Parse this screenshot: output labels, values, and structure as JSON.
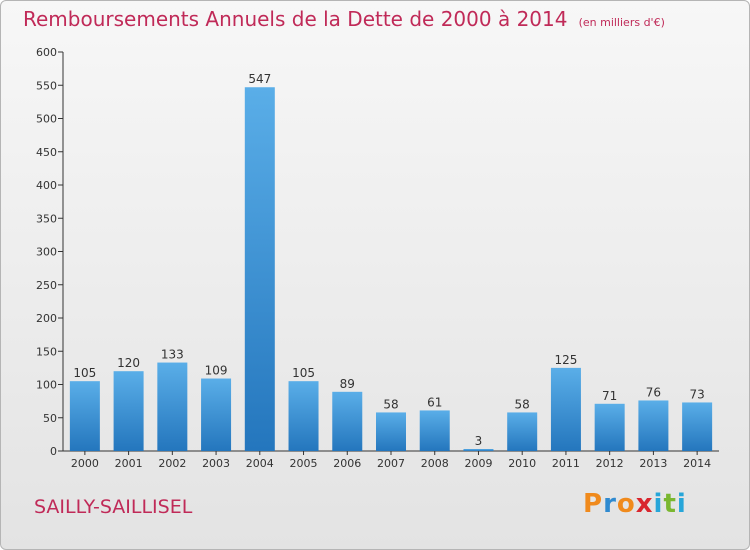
{
  "chart_data": {
    "type": "bar",
    "title": "Remboursements Annuels de la Dette de 2000 à 2014",
    "unit_note": "(en milliers d'€)",
    "categories": [
      "2000",
      "2001",
      "2002",
      "2003",
      "2004",
      "2005",
      "2006",
      "2007",
      "2008",
      "2009",
      "2010",
      "2011",
      "2012",
      "2013",
      "2014"
    ],
    "values": [
      105,
      120,
      133,
      109,
      547,
      105,
      89,
      58,
      61,
      3,
      58,
      125,
      71,
      76,
      73
    ],
    "data_labels": [
      "105",
      "120",
      "133",
      "109",
      "547",
      "105",
      "89",
      "58",
      "61",
      "3",
      "58",
      "125",
      "71",
      "76",
      "73"
    ],
    "ylim": [
      0,
      600
    ],
    "yticks": [
      0,
      50,
      100,
      150,
      200,
      250,
      300,
      350,
      400,
      450,
      500,
      550,
      600
    ],
    "ytick_labels": [
      "0",
      "50",
      "100",
      "150",
      "200",
      "250",
      "300",
      "350",
      "400",
      "450",
      "500",
      "550",
      "600"
    ],
    "xlabel": "",
    "ylabel": "",
    "grid": false,
    "bar_color": "#2e8fd6"
  },
  "footer": {
    "commune": "SAILLY-SAILLISEL",
    "logo_letters": [
      {
        "ch": "P",
        "color": "#f08a1c"
      },
      {
        "ch": "r",
        "color": "#2f8ad0"
      },
      {
        "ch": "o",
        "color": "#f08a1c"
      },
      {
        "ch": "x",
        "color": "#d9262e"
      },
      {
        "ch": "i",
        "color": "#27a6d9"
      },
      {
        "ch": "t",
        "color": "#7ab730"
      },
      {
        "ch": "i",
        "color": "#27a6d9"
      }
    ]
  },
  "colors": {
    "title": "#c02a58",
    "axis": "#333333"
  }
}
